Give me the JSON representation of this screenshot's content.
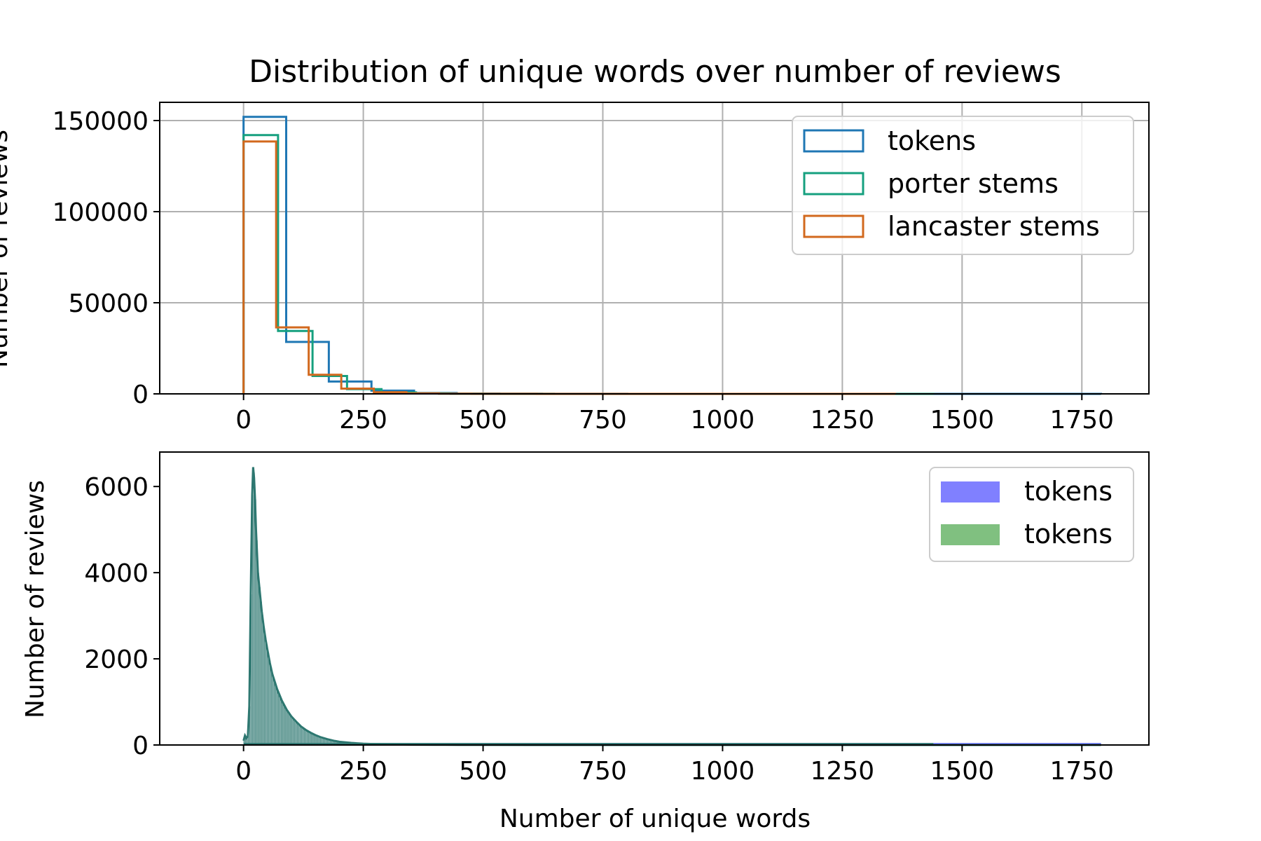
{
  "chart_data": [
    {
      "type": "histogram",
      "histtype": "step",
      "title": "Distribution of unique words over number of reviews",
      "xlabel": "",
      "ylabel": "Number of reviews",
      "xlim": [
        -175,
        1890
      ],
      "ylim": [
        0,
        160000
      ],
      "xticks": [
        0,
        250,
        500,
        750,
        1000,
        1250,
        1500,
        1750
      ],
      "yticks": [
        0,
        50000,
        100000,
        150000
      ],
      "grid": true,
      "legend_position": "upper right",
      "series": [
        {
          "name": "tokens",
          "color": "#1f77b4",
          "bin_edges": [
            0,
            89,
            178,
            267,
            356,
            445,
            534,
            623,
            712,
            801,
            890,
            979,
            1068,
            1157,
            1246,
            1335,
            1424,
            1513,
            1602,
            1691,
            1790
          ],
          "counts": [
            152000,
            28500,
            6800,
            1800,
            500,
            200,
            100,
            50,
            30,
            20,
            10,
            10,
            5,
            5,
            5,
            3,
            3,
            2,
            2,
            1
          ]
        },
        {
          "name": "porter stems",
          "color": "#16a07f",
          "bin_edges": [
            0,
            72,
            144,
            216,
            288,
            360,
            432,
            504,
            576,
            648,
            720,
            792,
            864,
            936,
            1008,
            1080,
            1152,
            1224,
            1296,
            1368,
            1440
          ],
          "counts": [
            142000,
            34500,
            9800,
            2600,
            800,
            300,
            120,
            60,
            30,
            20,
            10,
            8,
            5,
            4,
            3,
            3,
            2,
            2,
            1,
            1
          ]
        },
        {
          "name": "lancaster stems",
          "color": "#d2691e",
          "bin_edges": [
            0,
            68,
            136,
            204,
            272,
            340,
            408,
            476,
            544,
            612,
            680,
            748,
            816,
            884,
            952,
            1020,
            1088,
            1156,
            1224,
            1292,
            1360
          ],
          "counts": [
            138500,
            36500,
            10500,
            2900,
            900,
            300,
            120,
            60,
            30,
            20,
            10,
            8,
            5,
            4,
            3,
            3,
            2,
            2,
            1,
            1
          ]
        }
      ]
    },
    {
      "type": "histogram",
      "histtype": "bar",
      "title": "",
      "xlabel": "Number of unique words",
      "ylabel": "Number of reviews",
      "xlim": [
        -175,
        1890
      ],
      "ylim": [
        0,
        6800
      ],
      "xticks": [
        0,
        250,
        500,
        750,
        1000,
        1250,
        1500,
        1750
      ],
      "yticks": [
        0,
        2000,
        4000,
        6000
      ],
      "grid": false,
      "legend_position": "upper right",
      "series": [
        {
          "name": "tokens",
          "color": "#0000ff",
          "alpha": 0.5,
          "x_max": 1790
        },
        {
          "name": "tokens",
          "color": "#008000",
          "alpha": 0.5,
          "x_max": 1440
        }
      ],
      "curve": {
        "color": "#2d7770",
        "x": [
          0,
          3,
          6,
          9,
          12,
          15,
          18,
          20,
          22,
          24,
          26,
          28,
          30,
          34,
          38,
          42,
          46,
          50,
          55,
          60,
          70,
          80,
          90,
          100,
          110,
          120,
          130,
          140,
          150,
          160,
          175,
          190,
          200,
          225,
          250,
          275,
          300,
          350,
          400,
          450,
          500,
          600,
          700,
          800,
          1000,
          1200,
          1400,
          1600,
          1790
        ],
        "y": [
          100,
          220,
          160,
          200,
          900,
          3500,
          5800,
          6450,
          6200,
          5700,
          5000,
          4500,
          4000,
          3550,
          3100,
          2750,
          2450,
          2200,
          1900,
          1650,
          1300,
          1030,
          820,
          660,
          540,
          430,
          350,
          285,
          230,
          185,
          135,
          95,
          75,
          48,
          30,
          20,
          13,
          7,
          4,
          3,
          2,
          1,
          1,
          0,
          0,
          0,
          0,
          0,
          0
        ]
      }
    }
  ]
}
